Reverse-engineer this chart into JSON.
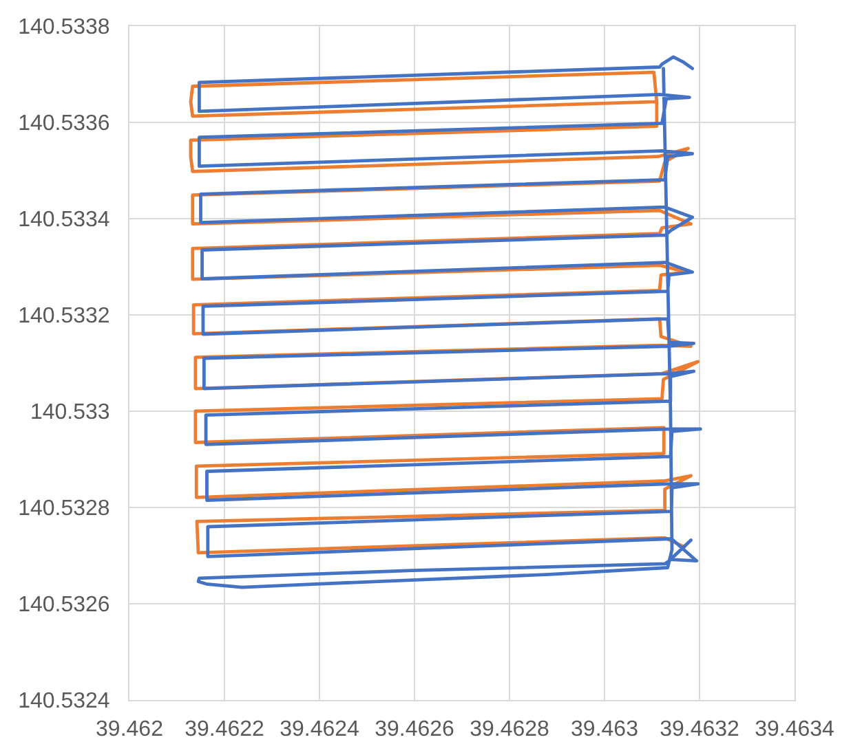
{
  "chart_data": {
    "type": "line",
    "xlim": [
      39.462,
      39.4634
    ],
    "xticks": [
      39.462,
      39.4622,
      39.4624,
      39.4626,
      39.4628,
      39.463,
      39.4632,
      39.4634
    ],
    "ylim": [
      140.5324,
      140.5338
    ],
    "yticks": [
      140.5324,
      140.5326,
      140.5328,
      140.533,
      140.5332,
      140.5334,
      140.5336,
      140.5338
    ],
    "grid": true,
    "marker": "none",
    "line_style": "solid",
    "series": [
      {
        "color": "#ed7d31",
        "x": [
          39.46311,
          39.463104,
          39.462133,
          39.462129,
          39.462133,
          39.46311,
          39.46311,
          39.462129,
          39.462129,
          39.462133,
          39.463113,
          39.463176,
          39.463127,
          39.463116,
          39.462133,
          39.462133,
          39.463116,
          39.463182,
          39.463121,
          39.463116,
          39.462133,
          39.462133,
          39.463116,
          39.463173,
          39.463119,
          39.463116,
          39.462135,
          39.462135,
          39.463116,
          39.463119,
          39.463182,
          39.463118,
          39.462139,
          39.462139,
          39.463121,
          39.463197,
          39.463124,
          39.463121,
          39.462139,
          39.462139,
          39.463125,
          39.463125,
          39.462141,
          39.462141,
          39.463125,
          39.463182,
          39.463127,
          39.463127,
          39.462142,
          39.462145,
          39.463127,
          39.463168
        ],
        "values": [
          140.533643,
          140.533704,
          140.533675,
          140.533643,
          140.533613,
          140.533643,
          140.533592,
          140.533563,
          140.533529,
          140.533498,
          140.533529,
          140.533546,
          140.533518,
          140.533478,
          140.533449,
          140.533389,
          140.533417,
          140.533389,
          140.533381,
          140.533369,
          140.533338,
          140.533274,
          140.533303,
          140.533289,
          140.533283,
          140.533251,
          140.533221,
          140.533161,
          140.533192,
          140.533155,
          140.533135,
          140.533137,
          140.533112,
          140.533047,
          140.533078,
          140.533103,
          140.533066,
          140.533026,
          140.533,
          140.532935,
          140.532966,
          140.532912,
          140.532886,
          140.532821,
          140.532855,
          140.532866,
          140.532838,
          140.532794,
          140.532771,
          140.532706,
          140.532737,
          140.532718
        ]
      },
      {
        "color": "#4472c4",
        "x": [
          39.463185,
          39.463165,
          39.463145,
          39.463121,
          39.463116,
          39.462147,
          39.462147,
          39.463116,
          39.463179,
          39.46313,
          39.463121,
          39.462147,
          39.462147,
          39.463121,
          39.463185,
          39.463133,
          39.463127,
          39.46215,
          39.46215,
          39.463127,
          39.463185,
          39.463139,
          39.463129,
          39.462153,
          39.462153,
          39.463129,
          39.463185,
          39.463136,
          39.463133,
          39.462155,
          39.462155,
          39.463133,
          39.463136,
          39.463188,
          39.463136,
          39.462157,
          39.462157,
          39.463136,
          39.463188,
          39.463139,
          39.463139,
          39.462161,
          39.462161,
          39.463139,
          39.463202,
          39.463142,
          39.463139,
          39.462163,
          39.462163,
          39.463141,
          39.463197,
          39.463142,
          39.463141,
          39.462165,
          39.462165,
          39.463141,
          39.463194,
          39.463139,
          39.463182,
          39.463136,
          39.463127,
          39.462595,
          39.462147,
          39.462145,
          39.462162,
          39.462237,
          39.462393,
          39.462595,
          39.462884,
          39.463133,
          39.463142,
          39.463139,
          39.463133,
          39.463127,
          39.463124
        ],
        "values": [
          140.533712,
          140.533726,
          140.533736,
          140.533721,
          140.533715,
          140.533683,
          140.533623,
          140.533658,
          140.533652,
          140.533649,
          140.533598,
          140.533569,
          140.533509,
          140.533541,
          140.533535,
          140.533529,
          140.533481,
          140.533451,
          140.533392,
          140.533424,
          140.533403,
          140.533375,
          140.533366,
          140.533335,
          140.533275,
          140.533309,
          140.533289,
          140.533283,
          140.533249,
          140.533218,
          140.53316,
          140.533192,
          140.533143,
          140.533141,
          140.533135,
          140.53311,
          140.533047,
          140.533078,
          140.533083,
          140.533072,
          140.533021,
          140.532992,
          140.532931,
          140.532963,
          140.532963,
          140.532958,
          140.532906,
          140.532875,
          140.532815,
          140.532849,
          140.532849,
          140.532841,
          140.532792,
          140.53276,
          140.532698,
          140.532735,
          140.532689,
          140.532692,
          140.532732,
          140.532689,
          140.532683,
          140.532669,
          140.532653,
          140.532646,
          140.532641,
          140.532634,
          140.532641,
          140.532649,
          140.532661,
          140.532675,
          140.532712,
          140.532998,
          140.533283,
          140.533569,
          140.533712
        ]
      }
    ]
  }
}
